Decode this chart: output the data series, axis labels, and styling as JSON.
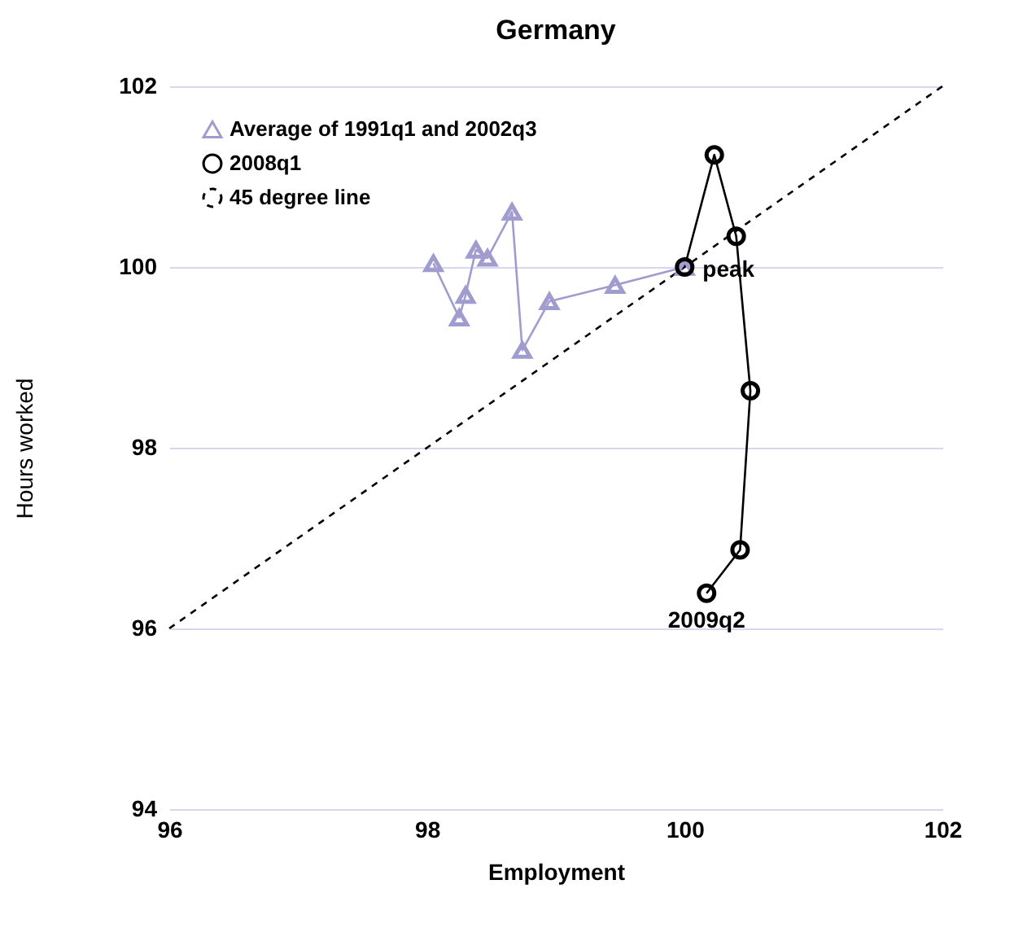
{
  "chart_data": {
    "type": "line",
    "title": "Germany",
    "xlabel": "Employment",
    "ylabel": "Hours worked",
    "xlim": [
      96,
      102
    ],
    "xticks": [
      96,
      98,
      100,
      102
    ],
    "ylim": [
      94,
      102
    ],
    "yticks": [
      94,
      96,
      98,
      100,
      102
    ],
    "grid": "y",
    "legend": "top left",
    "series": [
      {
        "name": "Average of 1991q1 and 2002q3",
        "color": "#a09ccf",
        "marker": "triangle",
        "line_style": "solid",
        "x": [
          98.05,
          98.25,
          98.3,
          98.38,
          98.47,
          98.66,
          98.74,
          98.95,
          99.46,
          100
        ],
        "values": [
          100.04,
          99.44,
          99.69,
          100.19,
          100.1,
          100.61,
          99.08,
          99.62,
          99.8,
          100
        ]
      },
      {
        "name": "2008q1",
        "color": "#000000",
        "marker": "circle",
        "line_style": "solid",
        "x": [
          100,
          100.23,
          100.4,
          100.51,
          100.43,
          100.17
        ],
        "values": [
          100,
          101.24,
          100.34,
          98.63,
          96.87,
          96.39
        ]
      },
      {
        "name": "45 degree line",
        "color": "#000000",
        "marker": "none",
        "line_style": "dashed",
        "x": [
          96,
          102
        ],
        "values": [
          96,
          102
        ]
      }
    ],
    "annotations": [
      {
        "text": "peak",
        "x": 100,
        "y": 100
      },
      {
        "text": "2009q2",
        "x": 100.17,
        "y": 96.39
      }
    ]
  }
}
